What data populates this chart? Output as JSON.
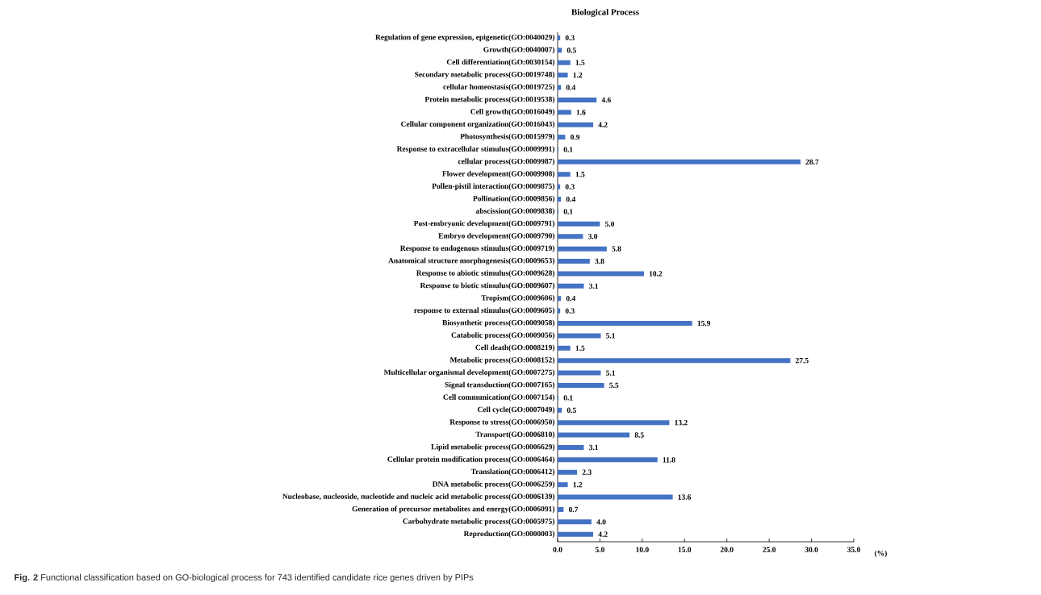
{
  "chart_data": {
    "type": "bar",
    "orientation": "horizontal",
    "title": "Biological Process",
    "xlabel": "(%)",
    "categories": [
      "Regulation of gene expression, epigenetic(GO:0040029)",
      "Growth(GO:0040007)",
      "Cell differentiation(GO:0030154)",
      "Secondary metabolic process(GO:0019748)",
      "cellular homeostasis(GO:0019725)",
      "Protein metabolic process(GO:0019538)",
      "Cell growth(GO:0016049)",
      "Cellular component organization(GO:0016043)",
      "Photosynthesis(GO:0015979)",
      "Response to extracellular stimulus(GO:0009991)",
      "cellular process(GO:0009987)",
      "Flower development(GO:0009908)",
      "Pollen-pistil interaction(GO:0009875)",
      "Pollination(GO:0009856)",
      "abscission(GO:0009838)",
      "Post-embryonic development(GO:0009791)",
      "Embryo development(GO:0009790)",
      "Response to endogenous stimulus(GO:0009719)",
      "Anatomical structure morphogenesis(GO:0009653)",
      "Response to abiotic stimulus(GO:0009628)",
      "Response to biotic stimulus(GO:0009607)",
      "Tropism(GO:0009606)",
      "response to external stimulus(GO:0009605)",
      "Biosynthetic process(GO:0009058)",
      "Catabolic process(GO:0009056)",
      "Cell death(GO:0008219)",
      "Metabolic process(GO:0008152)",
      "Multicellular organismal development(GO:0007275)",
      "Signal transduction(GO:0007165)",
      "Cell communication(GO:0007154)",
      "Cell cycle(GO:0007049)",
      "Response to stress(GO:0006950)",
      "Transport(GO:0006810)",
      "Lipid metabolic process(GO:0006629)",
      "Cellular protein modification process(GO:0006464)",
      "Translation(GO:0006412)",
      "DNA metabolic process(GO:0006259)",
      "Nucleobase, nucleoside, nucleotide and nucleic acid metabolic process(GO:0006139)",
      "Generation of precursor metabolites and energy(GO:0006091)",
      "Carbohydrate metabolic process(GO:0005975)",
      "Reproduction(GO:0000003)"
    ],
    "values": [
      0.3,
      0.5,
      1.5,
      1.2,
      0.4,
      4.6,
      1.6,
      4.2,
      0.9,
      0.1,
      28.7,
      1.5,
      0.3,
      0.4,
      0.1,
      5.0,
      3.0,
      5.8,
      3.8,
      10.2,
      3.1,
      0.4,
      0.3,
      15.9,
      5.1,
      1.5,
      27.5,
      5.1,
      5.5,
      0.1,
      0.5,
      13.2,
      8.5,
      3.1,
      11.8,
      2.3,
      1.2,
      13.6,
      0.7,
      4.0,
      4.2
    ],
    "value_labels": [
      "0.3",
      "0.5",
      "1.5",
      "1.2",
      "0.4",
      "4.6",
      "1.6",
      "4.2",
      "0.9",
      "0.1",
      "28.7",
      "1.5",
      "0.3",
      "0.4",
      "0.1",
      "5.0",
      "3.0",
      "5.8",
      "3.8",
      "10.2",
      "3.1",
      "0.4",
      "0.3",
      "15.9",
      "5.1",
      "1.5",
      "27.5",
      "5.1",
      "5.5",
      "0.1",
      "0.5",
      "13.2",
      "8.5",
      "3.1",
      "11.8",
      "2.3",
      "1.2",
      "13.6",
      "0.7",
      "4.0",
      "4.2"
    ],
    "color": "#4472c4",
    "xlim": [
      0,
      35
    ],
    "xticks": [
      {
        "value": 0,
        "label": "0.0"
      },
      {
        "value": 5,
        "label": "5.0"
      },
      {
        "value": 10,
        "label": "10.0"
      },
      {
        "value": 15,
        "label": "15.0"
      },
      {
        "value": 20,
        "label": "20.0"
      },
      {
        "value": 25,
        "label": "25.0"
      },
      {
        "value": 30,
        "label": "30.0"
      },
      {
        "value": 35,
        "label": "35.0"
      }
    ],
    "grid": false,
    "annotations": [
      "**Fig. 2** Functional classification based on GO-biological process for 743 identified candidate rice genes driven by PIPs"
    ]
  }
}
